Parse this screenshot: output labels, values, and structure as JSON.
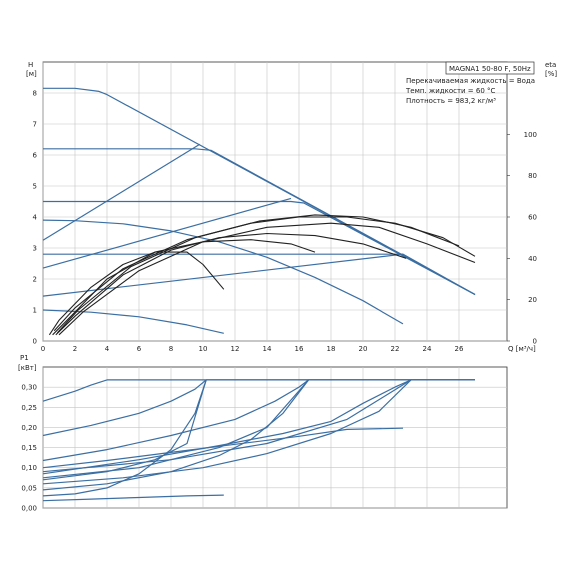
{
  "chart_data": [
    {
      "type": "line",
      "panel": "head-and-efficiency",
      "info_box_title": "MAGNA1 50-80 F, 50Hz",
      "info_lines": [
        "Перекачиваемая жидкость = Вода",
        "Темп. жидкости = 60 °C",
        "Плотность = 983,2 кг/м³"
      ],
      "ylabel_left": [
        "H",
        "[м]"
      ],
      "ylabel_right": [
        "eta",
        "[%]"
      ],
      "xlabel": "Q [м³/ч]",
      "xlim": [
        0,
        29
      ],
      "ylim_left": [
        0,
        9
      ],
      "ylim_right": [
        0,
        135
      ],
      "x_ticks": [
        "0",
        "2",
        "4",
        "6",
        "8",
        "10",
        "12",
        "14",
        "16",
        "18",
        "20",
        "22",
        "24",
        "26"
      ],
      "y_ticks_left": [
        "0",
        "1",
        "2",
        "3",
        "4",
        "5",
        "6",
        "7",
        "8"
      ],
      "y_ticks_right": [
        "0",
        "20",
        "40",
        "60",
        "80",
        "100"
      ],
      "grid": true,
      "series": [
        {
          "role": "head",
          "points": [
            [
              0,
              8.15
            ],
            [
              2,
              8.15
            ],
            [
              3.5,
              8.05
            ],
            [
              4,
              7.95
            ],
            [
              27,
              1.5
            ]
          ]
        },
        {
          "role": "head",
          "points": [
            [
              0,
              6.2
            ],
            [
              9.5,
              6.2
            ],
            [
              10.5,
              6.15
            ],
            [
              27,
              1.5
            ]
          ]
        },
        {
          "role": "head",
          "points": [
            [
              0,
              4.5
            ],
            [
              15.5,
              4.5
            ],
            [
              16.3,
              4.45
            ],
            [
              27,
              1.5
            ]
          ]
        },
        {
          "role": "head",
          "points": [
            [
              0,
              2.8
            ],
            [
              22.5,
              2.8
            ],
            [
              27,
              1.5
            ]
          ]
        },
        {
          "role": "head",
          "points": [
            [
              0,
              3.9
            ],
            [
              2,
              3.88
            ],
            [
              5,
              3.78
            ],
            [
              8,
              3.55
            ],
            [
              11,
              3.2
            ],
            [
              14,
              2.7
            ],
            [
              17,
              2.05
            ],
            [
              20,
              1.3
            ],
            [
              22.5,
              0.55
            ]
          ]
        },
        {
          "role": "head",
          "points": [
            [
              0,
              1.0
            ],
            [
              3,
              0.93
            ],
            [
              6,
              0.78
            ],
            [
              9,
              0.52
            ],
            [
              11.3,
              0.25
            ]
          ]
        },
        {
          "role": "system",
          "points": [
            [
              0,
              3.25
            ],
            [
              9.8,
              6.35
            ]
          ]
        },
        {
          "role": "system",
          "points": [
            [
              0,
              2.35
            ],
            [
              15.5,
              4.6
            ]
          ]
        },
        {
          "role": "system",
          "points": [
            [
              0,
              1.45
            ],
            [
              22.5,
              2.8
            ]
          ]
        },
        {
          "role": "efficiency",
          "points": [
            [
              0.4,
              3
            ],
            [
              1,
              10
            ],
            [
              3,
              26
            ],
            [
              5,
              37
            ],
            [
              7,
              43
            ],
            [
              9,
              43
            ],
            [
              10,
              37
            ],
            [
              11.3,
              25
            ]
          ]
        },
        {
          "role": "efficiency",
          "points": [
            [
              0.6,
              3
            ],
            [
              1.5,
              10
            ],
            [
              4,
              30
            ],
            [
              7,
              43
            ],
            [
              10,
              48
            ],
            [
              13,
              49
            ],
            [
              15.5,
              47
            ],
            [
              17,
              43
            ]
          ]
        },
        {
          "role": "efficiency",
          "points": [
            [
              0.8,
              3
            ],
            [
              2,
              12
            ],
            [
              5,
              32
            ],
            [
              8,
              44
            ],
            [
              11,
              50
            ],
            [
              14,
              52
            ],
            [
              17,
              51
            ],
            [
              20,
              47
            ],
            [
              22.7,
              40
            ]
          ]
        },
        {
          "role": "efficiency",
          "points": [
            [
              1,
              3
            ],
            [
              2.5,
              14
            ],
            [
              6,
              34
            ],
            [
              10,
              48
            ],
            [
              14,
              55
            ],
            [
              18,
              57
            ],
            [
              21,
              55
            ],
            [
              24,
              47
            ],
            [
              27,
              38
            ]
          ]
        },
        {
          "role": "efficiency",
          "points": [
            [
              0.7,
              5
            ],
            [
              2,
              16
            ],
            [
              5,
              35
            ],
            [
              9,
              49
            ],
            [
              13,
              57
            ],
            [
              16,
              60
            ],
            [
              19,
              60
            ],
            [
              22,
              57
            ],
            [
              25,
              50
            ],
            [
              27,
              41
            ]
          ]
        },
        {
          "role": "efficiency",
          "points": [
            [
              0.9,
              4
            ],
            [
              2.2,
              15
            ],
            [
              5.5,
              36
            ],
            [
              9.5,
              50
            ],
            [
              13.5,
              58
            ],
            [
              17,
              61
            ],
            [
              20,
              60
            ],
            [
              23,
              55
            ],
            [
              26,
              46
            ]
          ]
        }
      ]
    },
    {
      "type": "line",
      "panel": "power",
      "ylabel": [
        "P1",
        "[кВт]"
      ],
      "xlim": [
        0,
        29
      ],
      "ylim": [
        0,
        0.35
      ],
      "y_ticks": [
        "0,30",
        "0,25",
        "0,20",
        "0,15",
        "0,10",
        "0,05",
        "0,00"
      ],
      "grid": true,
      "series": [
        {
          "points": [
            [
              0,
              0.265
            ],
            [
              2,
              0.29
            ],
            [
              3,
              0.305
            ],
            [
              4,
              0.318
            ],
            [
              27,
              0.318
            ]
          ]
        },
        {
          "points": [
            [
              0,
              0.18
            ],
            [
              3,
              0.205
            ],
            [
              6,
              0.235
            ],
            [
              8,
              0.265
            ],
            [
              9.5,
              0.295
            ],
            [
              10.2,
              0.318
            ],
            [
              27,
              0.318
            ]
          ]
        },
        {
          "points": [
            [
              0,
              0.118
            ],
            [
              4,
              0.145
            ],
            [
              8,
              0.18
            ],
            [
              12,
              0.22
            ],
            [
              14.5,
              0.265
            ],
            [
              16,
              0.3
            ],
            [
              16.6,
              0.318
            ],
            [
              27,
              0.318
            ]
          ]
        },
        {
          "points": [
            [
              0,
              0.085
            ],
            [
              6,
              0.12
            ],
            [
              11,
              0.155
            ],
            [
              15,
              0.185
            ],
            [
              18,
              0.215
            ],
            [
              20,
              0.26
            ],
            [
              22,
              0.3
            ],
            [
              23,
              0.318
            ],
            [
              27,
              0.318
            ]
          ]
        },
        {
          "points": [
            [
              0,
              0.1
            ],
            [
              4,
              0.118
            ],
            [
              8,
              0.138
            ],
            [
              12,
              0.158
            ],
            [
              16,
              0.178
            ],
            [
              19,
              0.195
            ],
            [
              22.5,
              0.198
            ]
          ]
        },
        {
          "points": [
            [
              0,
              0.018
            ],
            [
              3,
              0.022
            ],
            [
              6,
              0.026
            ],
            [
              9,
              0.03
            ],
            [
              11.3,
              0.032
            ]
          ]
        },
        {
          "points": [
            [
              0,
              0.03
            ],
            [
              2,
              0.035
            ],
            [
              4,
              0.05
            ],
            [
              6,
              0.085
            ],
            [
              8,
              0.145
            ],
            [
              9.5,
              0.235
            ],
            [
              10.2,
              0.318
            ]
          ]
        },
        {
          "points": [
            [
              0,
              0.045
            ],
            [
              4,
              0.06
            ],
            [
              8,
              0.09
            ],
            [
              11,
              0.13
            ],
            [
              13,
              0.17
            ],
            [
              15,
              0.235
            ],
            [
              16.6,
              0.318
            ]
          ]
        },
        {
          "points": [
            [
              0,
              0.06
            ],
            [
              5,
              0.075
            ],
            [
              10,
              0.1
            ],
            [
              14,
              0.135
            ],
            [
              18,
              0.185
            ],
            [
              21,
              0.24
            ],
            [
              23,
              0.318
            ]
          ]
        },
        {
          "points": [
            [
              0,
              0.07
            ],
            [
              4,
              0.09
            ],
            [
              7,
              0.12
            ],
            [
              9,
              0.16
            ],
            [
              10.2,
              0.318
            ]
          ]
        },
        {
          "points": [
            [
              0,
              0.075
            ],
            [
              6,
              0.1
            ],
            [
              11,
              0.15
            ],
            [
              14,
              0.2
            ],
            [
              16.6,
              0.318
            ]
          ]
        },
        {
          "points": [
            [
              0,
              0.09
            ],
            [
              8,
              0.12
            ],
            [
              14,
              0.16
            ],
            [
              19,
              0.22
            ],
            [
              23,
              0.318
            ]
          ]
        }
      ]
    }
  ],
  "colors": {
    "curve": "#3b6fa3",
    "efficiency": "#222222",
    "grid": "#c4c4c4",
    "frame": "#333333"
  }
}
